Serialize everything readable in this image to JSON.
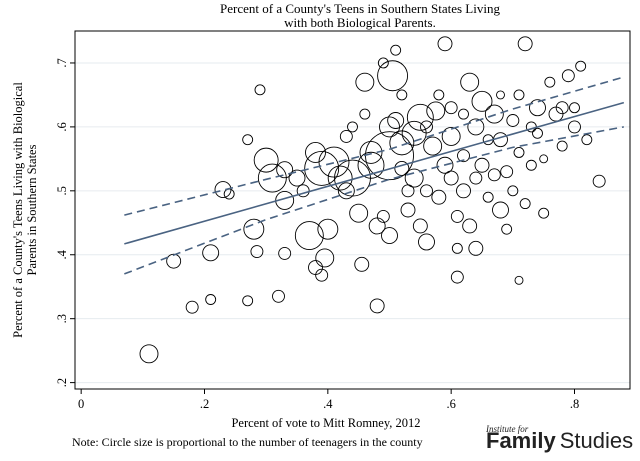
{
  "chart_data": {
    "type": "scatter",
    "title_line1": "Percent of a County's Teens in Southern States Living",
    "title_line2": "with both Biological Parents.",
    "ylabel_line1": "Percent of a County's Teens Living with Biological",
    "ylabel_line2": "Parents in Southern States",
    "xlabel": "Percent of vote to Mitt Romney, 2012",
    "xlim": [
      -0.01,
      0.89
    ],
    "ylim": [
      0.19,
      0.75
    ],
    "xticks": [
      0,
      0.2,
      0.4,
      0.6,
      0.8
    ],
    "xtick_labels": [
      "0",
      ".2",
      ".4",
      ".6",
      ".8"
    ],
    "yticks": [
      0.2,
      0.3,
      0.4,
      0.5,
      0.6,
      0.7
    ],
    "ytick_labels": [
      ".2",
      ".3",
      ".4",
      ".5",
      ".6",
      ".7"
    ],
    "grid": "horizontal",
    "fit_line": {
      "x": [
        0.07,
        0.88
      ],
      "y": [
        0.417,
        0.638
      ]
    },
    "ci_upper": [
      [
        0.07,
        0.462
      ],
      [
        0.3,
        0.518
      ],
      [
        0.5,
        0.565
      ],
      [
        0.7,
        0.628
      ],
      [
        0.88,
        0.678
      ]
    ],
    "ci_lower": [
      [
        0.07,
        0.37
      ],
      [
        0.3,
        0.455
      ],
      [
        0.5,
        0.518
      ],
      [
        0.7,
        0.568
      ],
      [
        0.88,
        0.6
      ]
    ],
    "points": [
      [
        0.11,
        0.245,
        9
      ],
      [
        0.15,
        0.39,
        7
      ],
      [
        0.18,
        0.318,
        6
      ],
      [
        0.21,
        0.33,
        5
      ],
      [
        0.21,
        0.403,
        8
      ],
      [
        0.23,
        0.502,
        8
      ],
      [
        0.24,
        0.495,
        5
      ],
      [
        0.27,
        0.328,
        5
      ],
      [
        0.28,
        0.44,
        10
      ],
      [
        0.285,
        0.405,
        6
      ],
      [
        0.29,
        0.658,
        5
      ],
      [
        0.27,
        0.58,
        5
      ],
      [
        0.3,
        0.548,
        12
      ],
      [
        0.31,
        0.52,
        14
      ],
      [
        0.33,
        0.485,
        9
      ],
      [
        0.33,
        0.533,
        8
      ],
      [
        0.32,
        0.335,
        6
      ],
      [
        0.33,
        0.402,
        6
      ],
      [
        0.35,
        0.52,
        8
      ],
      [
        0.36,
        0.5,
        6
      ],
      [
        0.37,
        0.43,
        14
      ],
      [
        0.38,
        0.56,
        10
      ],
      [
        0.39,
        0.535,
        17
      ],
      [
        0.38,
        0.38,
        7
      ],
      [
        0.39,
        0.368,
        6
      ],
      [
        0.395,
        0.395,
        9
      ],
      [
        0.4,
        0.44,
        10
      ],
      [
        0.41,
        0.545,
        15
      ],
      [
        0.42,
        0.52,
        12
      ],
      [
        0.43,
        0.5,
        8
      ],
      [
        0.43,
        0.585,
        6
      ],
      [
        0.44,
        0.52,
        18
      ],
      [
        0.45,
        0.465,
        9
      ],
      [
        0.455,
        0.385,
        7
      ],
      [
        0.46,
        0.67,
        9
      ],
      [
        0.47,
        0.54,
        13
      ],
      [
        0.47,
        0.56,
        11
      ],
      [
        0.48,
        0.445,
        8
      ],
      [
        0.48,
        0.32,
        7
      ],
      [
        0.49,
        0.46,
        6
      ],
      [
        0.49,
        0.7,
        5
      ],
      [
        0.5,
        0.555,
        24
      ],
      [
        0.5,
        0.6,
        10
      ],
      [
        0.5,
        0.43,
        8
      ],
      [
        0.505,
        0.68,
        15
      ],
      [
        0.51,
        0.72,
        5
      ],
      [
        0.51,
        0.61,
        8
      ],
      [
        0.52,
        0.575,
        12
      ],
      [
        0.52,
        0.535,
        7
      ],
      [
        0.53,
        0.5,
        6
      ],
      [
        0.53,
        0.47,
        7
      ],
      [
        0.54,
        0.59,
        12
      ],
      [
        0.54,
        0.52,
        9
      ],
      [
        0.55,
        0.615,
        13
      ],
      [
        0.55,
        0.445,
        7
      ],
      [
        0.56,
        0.42,
        8
      ],
      [
        0.56,
        0.5,
        6
      ],
      [
        0.57,
        0.57,
        9
      ],
      [
        0.575,
        0.625,
        9
      ],
      [
        0.58,
        0.49,
        7
      ],
      [
        0.59,
        0.73,
        7
      ],
      [
        0.59,
        0.54,
        8
      ],
      [
        0.6,
        0.585,
        9
      ],
      [
        0.6,
        0.52,
        7
      ],
      [
        0.6,
        0.63,
        6
      ],
      [
        0.61,
        0.46,
        6
      ],
      [
        0.61,
        0.41,
        5
      ],
      [
        0.61,
        0.365,
        6
      ],
      [
        0.62,
        0.5,
        7
      ],
      [
        0.62,
        0.555,
        6
      ],
      [
        0.63,
        0.67,
        9
      ],
      [
        0.63,
        0.445,
        7
      ],
      [
        0.64,
        0.6,
        8
      ],
      [
        0.64,
        0.52,
        6
      ],
      [
        0.64,
        0.41,
        7
      ],
      [
        0.65,
        0.64,
        10
      ],
      [
        0.65,
        0.54,
        7
      ],
      [
        0.66,
        0.49,
        5
      ],
      [
        0.67,
        0.62,
        9
      ],
      [
        0.67,
        0.525,
        6
      ],
      [
        0.68,
        0.47,
        8
      ],
      [
        0.68,
        0.58,
        7
      ],
      [
        0.69,
        0.53,
        6
      ],
      [
        0.69,
        0.44,
        5
      ],
      [
        0.7,
        0.61,
        6
      ],
      [
        0.7,
        0.5,
        5
      ],
      [
        0.71,
        0.56,
        5
      ],
      [
        0.71,
        0.65,
        5
      ],
      [
        0.72,
        0.73,
        7
      ],
      [
        0.72,
        0.48,
        5
      ],
      [
        0.73,
        0.54,
        5
      ],
      [
        0.74,
        0.63,
        8
      ],
      [
        0.74,
        0.59,
        5
      ],
      [
        0.75,
        0.465,
        5
      ],
      [
        0.76,
        0.67,
        5
      ],
      [
        0.77,
        0.62,
        7
      ],
      [
        0.78,
        0.63,
        6
      ],
      [
        0.78,
        0.57,
        5
      ],
      [
        0.79,
        0.68,
        6
      ],
      [
        0.8,
        0.6,
        6
      ],
      [
        0.8,
        0.63,
        5
      ],
      [
        0.81,
        0.695,
        5
      ],
      [
        0.82,
        0.58,
        5
      ],
      [
        0.84,
        0.515,
        6
      ],
      [
        0.71,
        0.36,
        4
      ],
      [
        0.46,
        0.62,
        5
      ],
      [
        0.52,
        0.65,
        5
      ],
      [
        0.56,
        0.6,
        6
      ],
      [
        0.58,
        0.65,
        5
      ],
      [
        0.66,
        0.58,
        5
      ],
      [
        0.62,
        0.62,
        5
      ],
      [
        0.68,
        0.65,
        4
      ],
      [
        0.75,
        0.55,
        4
      ],
      [
        0.73,
        0.6,
        5
      ],
      [
        0.44,
        0.6,
        5
      ]
    ]
  },
  "note": "Note: Circle size is proportional to the number of teenagers in the county",
  "brand": {
    "small": "Institute for",
    "word1": "Family",
    "word2": "Studies"
  },
  "colors": {
    "fit_line": "#4a6382",
    "ci_line": "#4a6382",
    "marker": "#000000"
  }
}
